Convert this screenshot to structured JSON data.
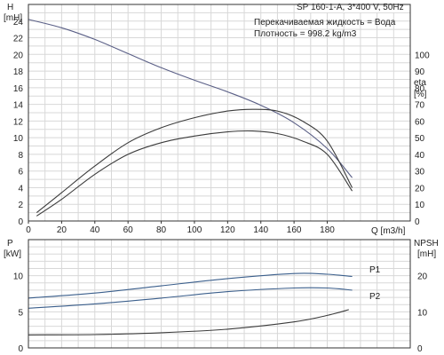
{
  "header": {
    "model": "SP 160-1-A, 3*400 V, 50Hz",
    "liquid": "Перекачиваемая жидкость = Вода",
    "density": "Плотность = 998.2 kg/m3"
  },
  "chart_data": [
    {
      "type": "line",
      "axes": {
        "x": {
          "label": "Q [m3/h]",
          "range": [
            0,
            230
          ],
          "ticks": [
            0,
            20,
            40,
            60,
            80,
            100,
            120,
            140,
            160,
            180
          ]
        },
        "y_left": {
          "label": "H",
          "unit": "[mH]",
          "range": [
            0,
            26
          ],
          "ticks": [
            0,
            2,
            4,
            6,
            8,
            10,
            12,
            14,
            16,
            18,
            20,
            22,
            24
          ]
        },
        "y_right": {
          "label": "eta",
          "unit": "[%]",
          "range": [
            0,
            130
          ],
          "ticks": [
            0,
            10,
            20,
            30,
            40,
            50,
            60,
            70,
            80,
            90,
            100
          ]
        }
      },
      "grid": true,
      "series": [
        {
          "axis": "left",
          "color": "#5a5f86",
          "x": [
            0,
            20,
            40,
            60,
            80,
            100,
            120,
            140,
            160,
            180,
            195
          ],
          "y": [
            24.2,
            23.2,
            21.8,
            20.1,
            18.4,
            16.9,
            15.5,
            13.9,
            11.8,
            8.7,
            5.2
          ]
        },
        {
          "axis": "right",
          "color": "#3b3b3b",
          "x": [
            5,
            20,
            40,
            60,
            80,
            100,
            120,
            135,
            150,
            165,
            180,
            195
          ],
          "y": [
            5,
            17,
            33,
            47,
            56,
            62,
            66,
            67,
            66,
            60,
            48,
            20
          ]
        },
        {
          "axis": "right",
          "color": "#3b3b3b",
          "x": [
            5,
            20,
            40,
            60,
            80,
            100,
            120,
            135,
            150,
            165,
            180,
            195
          ],
          "y": [
            3,
            13,
            28,
            40,
            47,
            51,
            53.5,
            54,
            52.5,
            48,
            40,
            18
          ]
        }
      ]
    },
    {
      "type": "line",
      "axes": {
        "x": {
          "range": [
            0,
            230
          ]
        },
        "y_left": {
          "label": "P",
          "unit": "[kW]",
          "range": [
            0,
            15
          ],
          "ticks": [
            0,
            5,
            10
          ]
        },
        "y_right": {
          "label": "NPSH",
          "unit": "[mH]",
          "range": [
            0,
            30
          ],
          "ticks": [
            0,
            10,
            20
          ]
        }
      },
      "grid": true,
      "series": [
        {
          "name": "P1",
          "axis": "left",
          "color": "#3b5f8c",
          "x": [
            0,
            40,
            80,
            120,
            160,
            180,
            195
          ],
          "y": [
            6.9,
            7.6,
            8.6,
            9.6,
            10.3,
            10.2,
            9.9
          ]
        },
        {
          "name": "P2",
          "axis": "left",
          "color": "#3b5f8c",
          "x": [
            0,
            40,
            80,
            120,
            160,
            180,
            195
          ],
          "y": [
            5.5,
            6.1,
            6.9,
            7.8,
            8.3,
            8.3,
            8.0
          ]
        },
        {
          "axis": "right",
          "color": "#3b3b3b",
          "x": [
            0,
            40,
            80,
            120,
            160,
            180,
            193
          ],
          "y": [
            3.6,
            3.7,
            4.2,
            5.2,
            7.2,
            9.0,
            10.6
          ]
        }
      ]
    }
  ]
}
